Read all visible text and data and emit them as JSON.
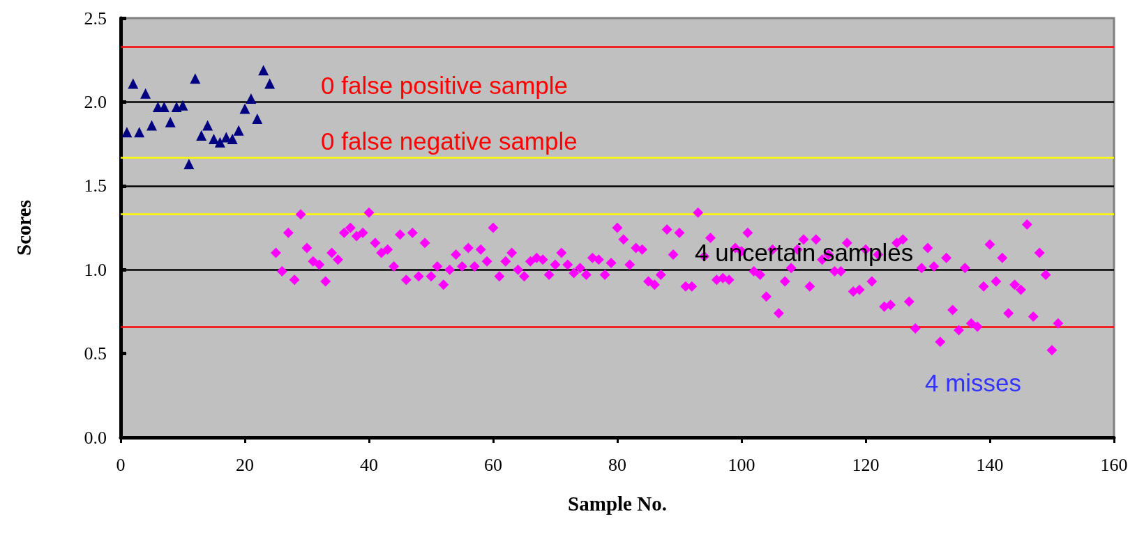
{
  "chart_data": {
    "type": "scatter",
    "xlabel": "Sample No.",
    "ylabel": "Scores",
    "xlim": [
      0,
      160
    ],
    "xticks": [
      0,
      20,
      40,
      60,
      80,
      100,
      120,
      140,
      160
    ],
    "ylim": [
      0,
      2.5
    ],
    "yticks": [
      {
        "value": 0,
        "label": "0.0"
      },
      {
        "value": 0.5,
        "label": "0.5"
      },
      {
        "value": 1,
        "label": "1.0"
      },
      {
        "value": 1.5,
        "label": "1.5"
      },
      {
        "value": 2,
        "label": "2.0"
      },
      {
        "value": 2.5,
        "label": "2.5"
      }
    ],
    "grid": false,
    "series": [
      {
        "color": "#000080",
        "marker": "triangle",
        "x": [
          1,
          2,
          3,
          4,
          5,
          6,
          7,
          8,
          9,
          10,
          11,
          12,
          13,
          14,
          15,
          16,
          17,
          18,
          19,
          20,
          21,
          22,
          23,
          24
        ],
        "values": [
          1.82,
          2.11,
          1.82,
          2.05,
          1.86,
          1.97,
          1.97,
          1.88,
          1.97,
          1.98,
          1.63,
          2.14,
          1.8,
          1.86,
          1.78,
          1.76,
          1.79,
          1.78,
          1.83,
          1.96,
          2.02,
          1.9,
          2.19,
          2.11
        ]
      },
      {
        "color": "#ff00ff",
        "marker": "diamond",
        "x": [
          25,
          26,
          27,
          28,
          29,
          30,
          31,
          32,
          33,
          34,
          35,
          36,
          37,
          38,
          39,
          40,
          41,
          42,
          43,
          44,
          45,
          46,
          47,
          48,
          49,
          50,
          51,
          52,
          53,
          54,
          55,
          56,
          57,
          58,
          59,
          60,
          61,
          62,
          63,
          64,
          65,
          66,
          67,
          68,
          69,
          70,
          71,
          72,
          73,
          74,
          75,
          76,
          77,
          78,
          79,
          80,
          81,
          82,
          83,
          84,
          85,
          86,
          87,
          88,
          89,
          90,
          91,
          92,
          93,
          94,
          95,
          96,
          97,
          98,
          99,
          100,
          101,
          102,
          103,
          104,
          105,
          106,
          107,
          108,
          109,
          110,
          111,
          112,
          113,
          114,
          115,
          116,
          117,
          118,
          119,
          120,
          121,
          122,
          123,
          124,
          125,
          126,
          127,
          128,
          129,
          130,
          131,
          132,
          133,
          134,
          135,
          136,
          137,
          138,
          139,
          140,
          141,
          142,
          143,
          144,
          145,
          146,
          147,
          148,
          149,
          150,
          151
        ],
        "values": [
          1.1,
          0.99,
          1.22,
          0.94,
          1.33,
          1.13,
          1.05,
          1.03,
          0.93,
          1.1,
          1.06,
          1.22,
          1.25,
          1.2,
          1.22,
          1.34,
          1.16,
          1.1,
          1.12,
          1.02,
          1.21,
          0.94,
          1.22,
          0.96,
          1.16,
          0.96,
          1.02,
          0.91,
          1.0,
          1.09,
          1.02,
          1.13,
          1.02,
          1.12,
          1.05,
          1.25,
          0.96,
          1.05,
          1.1,
          1.0,
          0.96,
          1.05,
          1.07,
          1.06,
          0.97,
          1.03,
          1.1,
          1.03,
          0.98,
          1.01,
          0.97,
          1.07,
          1.06,
          0.97,
          1.04,
          1.25,
          1.18,
          1.03,
          1.13,
          1.12,
          0.93,
          0.91,
          0.97,
          1.24,
          1.09,
          1.22,
          0.9,
          0.9,
          1.34,
          1.08,
          1.19,
          0.94,
          0.95,
          0.94,
          1.13,
          1.11,
          1.22,
          0.99,
          0.97,
          0.84,
          1.12,
          0.74,
          0.93,
          1.01,
          1.12,
          1.18,
          0.9,
          1.18,
          1.06,
          1.09,
          0.99,
          0.99,
          1.16,
          0.87,
          0.88,
          1.12,
          0.93,
          1.09,
          0.78,
          0.79,
          1.16,
          1.18,
          0.81,
          0.65,
          1.01,
          1.13,
          1.02,
          0.57,
          1.07,
          0.76,
          0.64,
          1.01,
          0.68,
          0.66,
          0.9,
          1.15,
          0.93,
          1.07,
          0.74,
          0.91,
          0.88,
          1.27,
          0.72,
          1.1,
          0.97,
          0.52,
          0.68
        ]
      }
    ],
    "ref_lines": [
      {
        "axis": "y",
        "value": 2.33,
        "color": "#ff0000",
        "line_style": "solid"
      },
      {
        "axis": "y",
        "value": 2.0,
        "color": "#000000",
        "line_style": "solid"
      },
      {
        "axis": "y",
        "value": 1.67,
        "color": "#ffff00",
        "line_style": "solid"
      },
      {
        "axis": "y",
        "value": 1.5,
        "color": "#000000",
        "line_style": "solid"
      },
      {
        "axis": "y",
        "value": 1.33,
        "color": "#ffff00",
        "line_style": "solid"
      },
      {
        "axis": "y",
        "value": 1.0,
        "color": "#000000",
        "line_style": "solid"
      },
      {
        "axis": "y",
        "value": 0.66,
        "color": "#ff0000",
        "line_style": "solid"
      }
    ],
    "annotations": [
      "0 false positive sample",
      "0 false negative sample",
      "4 uncertain samples",
      "4 misses"
    ]
  }
}
